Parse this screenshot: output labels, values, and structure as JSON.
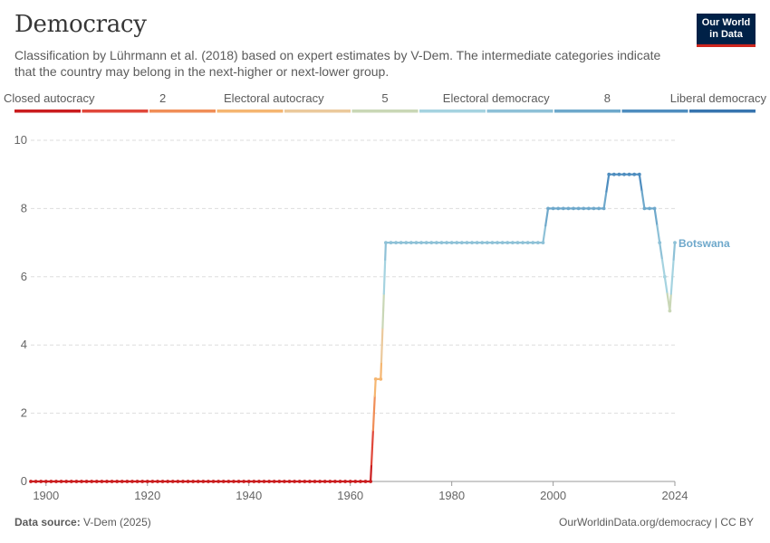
{
  "header": {
    "title": "Democracy",
    "subtitle": "Classification by Lührmann et al. (2018) based on expert estimates by V-Dem. The intermediate categories indicate that the country may belong in the next-higher or next-lower group."
  },
  "logo": {
    "line1": "Our World",
    "line2": "in Data"
  },
  "footer": {
    "source_label": "Data source:",
    "source_value": "V-Dem (2025)",
    "url": "OurWorldinData.org/democracy | CC BY"
  },
  "colors": {
    "scale": [
      "#ca1c1e",
      "#e0473a",
      "#f08e57",
      "#f5b671",
      "#ebc99c",
      "#c9d7b6",
      "#a5d3e0",
      "#8ec1d7",
      "#6ea8cb",
      "#4e8dbf",
      "#3775af"
    ],
    "grid": "#dddddd",
    "axis_text": "#666666",
    "series_label": "#6ea8cb"
  },
  "chart_data": {
    "type": "line",
    "title": "Democracy",
    "xlabel": "",
    "ylabel": "",
    "xlim": [
      1897,
      2024
    ],
    "ylim": [
      0,
      10
    ],
    "x_ticks": [
      1900,
      1920,
      1940,
      1960,
      1980,
      2000,
      2024
    ],
    "y_ticks": [
      0,
      2,
      4,
      6,
      8,
      10
    ],
    "grid": true,
    "legend": {
      "placement": "top",
      "labels": [
        {
          "text": "Closed autocracy",
          "value": 0
        },
        {
          "text": "2",
          "value": 2
        },
        {
          "text": "Electoral autocracy",
          "value": 3.5
        },
        {
          "text": "5",
          "value": 5
        },
        {
          "text": "Electoral democracy",
          "value": 6.5
        },
        {
          "text": "8",
          "value": 8
        },
        {
          "text": "Liberal democracy",
          "value": 10
        }
      ]
    },
    "series": [
      {
        "name": "Botswana",
        "points": [
          {
            "x": 1897,
            "y": 0
          },
          {
            "x": 1898,
            "y": 0
          },
          {
            "x": 1899,
            "y": 0
          },
          {
            "x": 1900,
            "y": 0
          },
          {
            "x": 1901,
            "y": 0
          },
          {
            "x": 1902,
            "y": 0
          },
          {
            "x": 1903,
            "y": 0
          },
          {
            "x": 1904,
            "y": 0
          },
          {
            "x": 1905,
            "y": 0
          },
          {
            "x": 1906,
            "y": 0
          },
          {
            "x": 1907,
            "y": 0
          },
          {
            "x": 1908,
            "y": 0
          },
          {
            "x": 1909,
            "y": 0
          },
          {
            "x": 1910,
            "y": 0
          },
          {
            "x": 1911,
            "y": 0
          },
          {
            "x": 1912,
            "y": 0
          },
          {
            "x": 1913,
            "y": 0
          },
          {
            "x": 1914,
            "y": 0
          },
          {
            "x": 1915,
            "y": 0
          },
          {
            "x": 1916,
            "y": 0
          },
          {
            "x": 1917,
            "y": 0
          },
          {
            "x": 1918,
            "y": 0
          },
          {
            "x": 1919,
            "y": 0
          },
          {
            "x": 1920,
            "y": 0
          },
          {
            "x": 1921,
            "y": 0
          },
          {
            "x": 1922,
            "y": 0
          },
          {
            "x": 1923,
            "y": 0
          },
          {
            "x": 1924,
            "y": 0
          },
          {
            "x": 1925,
            "y": 0
          },
          {
            "x": 1926,
            "y": 0
          },
          {
            "x": 1927,
            "y": 0
          },
          {
            "x": 1928,
            "y": 0
          },
          {
            "x": 1929,
            "y": 0
          },
          {
            "x": 1930,
            "y": 0
          },
          {
            "x": 1931,
            "y": 0
          },
          {
            "x": 1932,
            "y": 0
          },
          {
            "x": 1933,
            "y": 0
          },
          {
            "x": 1934,
            "y": 0
          },
          {
            "x": 1935,
            "y": 0
          },
          {
            "x": 1936,
            "y": 0
          },
          {
            "x": 1937,
            "y": 0
          },
          {
            "x": 1938,
            "y": 0
          },
          {
            "x": 1939,
            "y": 0
          },
          {
            "x": 1940,
            "y": 0
          },
          {
            "x": 1941,
            "y": 0
          },
          {
            "x": 1942,
            "y": 0
          },
          {
            "x": 1943,
            "y": 0
          },
          {
            "x": 1944,
            "y": 0
          },
          {
            "x": 1945,
            "y": 0
          },
          {
            "x": 1946,
            "y": 0
          },
          {
            "x": 1947,
            "y": 0
          },
          {
            "x": 1948,
            "y": 0
          },
          {
            "x": 1949,
            "y": 0
          },
          {
            "x": 1950,
            "y": 0
          },
          {
            "x": 1951,
            "y": 0
          },
          {
            "x": 1952,
            "y": 0
          },
          {
            "x": 1953,
            "y": 0
          },
          {
            "x": 1954,
            "y": 0
          },
          {
            "x": 1955,
            "y": 0
          },
          {
            "x": 1956,
            "y": 0
          },
          {
            "x": 1957,
            "y": 0
          },
          {
            "x": 1958,
            "y": 0
          },
          {
            "x": 1959,
            "y": 0
          },
          {
            "x": 1960,
            "y": 0
          },
          {
            "x": 1961,
            "y": 0
          },
          {
            "x": 1962,
            "y": 0
          },
          {
            "x": 1963,
            "y": 0
          },
          {
            "x": 1964,
            "y": 0
          },
          {
            "x": 1965,
            "y": 3
          },
          {
            "x": 1966,
            "y": 3
          },
          {
            "x": 1967,
            "y": 7
          },
          {
            "x": 1968,
            "y": 7
          },
          {
            "x": 1969,
            "y": 7
          },
          {
            "x": 1970,
            "y": 7
          },
          {
            "x": 1971,
            "y": 7
          },
          {
            "x": 1972,
            "y": 7
          },
          {
            "x": 1973,
            "y": 7
          },
          {
            "x": 1974,
            "y": 7
          },
          {
            "x": 1975,
            "y": 7
          },
          {
            "x": 1976,
            "y": 7
          },
          {
            "x": 1977,
            "y": 7
          },
          {
            "x": 1978,
            "y": 7
          },
          {
            "x": 1979,
            "y": 7
          },
          {
            "x": 1980,
            "y": 7
          },
          {
            "x": 1981,
            "y": 7
          },
          {
            "x": 1982,
            "y": 7
          },
          {
            "x": 1983,
            "y": 7
          },
          {
            "x": 1984,
            "y": 7
          },
          {
            "x": 1985,
            "y": 7
          },
          {
            "x": 1986,
            "y": 7
          },
          {
            "x": 1987,
            "y": 7
          },
          {
            "x": 1988,
            "y": 7
          },
          {
            "x": 1989,
            "y": 7
          },
          {
            "x": 1990,
            "y": 7
          },
          {
            "x": 1991,
            "y": 7
          },
          {
            "x": 1992,
            "y": 7
          },
          {
            "x": 1993,
            "y": 7
          },
          {
            "x": 1994,
            "y": 7
          },
          {
            "x": 1995,
            "y": 7
          },
          {
            "x": 1996,
            "y": 7
          },
          {
            "x": 1997,
            "y": 7
          },
          {
            "x": 1998,
            "y": 7
          },
          {
            "x": 1999,
            "y": 8
          },
          {
            "x": 2000,
            "y": 8
          },
          {
            "x": 2001,
            "y": 8
          },
          {
            "x": 2002,
            "y": 8
          },
          {
            "x": 2003,
            "y": 8
          },
          {
            "x": 2004,
            "y": 8
          },
          {
            "x": 2005,
            "y": 8
          },
          {
            "x": 2006,
            "y": 8
          },
          {
            "x": 2007,
            "y": 8
          },
          {
            "x": 2008,
            "y": 8
          },
          {
            "x": 2009,
            "y": 8
          },
          {
            "x": 2010,
            "y": 8
          },
          {
            "x": 2011,
            "y": 9
          },
          {
            "x": 2012,
            "y": 9
          },
          {
            "x": 2013,
            "y": 9
          },
          {
            "x": 2014,
            "y": 9
          },
          {
            "x": 2015,
            "y": 9
          },
          {
            "x": 2016,
            "y": 9
          },
          {
            "x": 2017,
            "y": 9
          },
          {
            "x": 2018,
            "y": 8
          },
          {
            "x": 2019,
            "y": 8
          },
          {
            "x": 2020,
            "y": 8
          },
          {
            "x": 2021,
            "y": 7
          },
          {
            "x": 2022,
            "y": 6
          },
          {
            "x": 2023,
            "y": 5
          },
          {
            "x": 2024,
            "y": 7
          }
        ]
      }
    ]
  }
}
